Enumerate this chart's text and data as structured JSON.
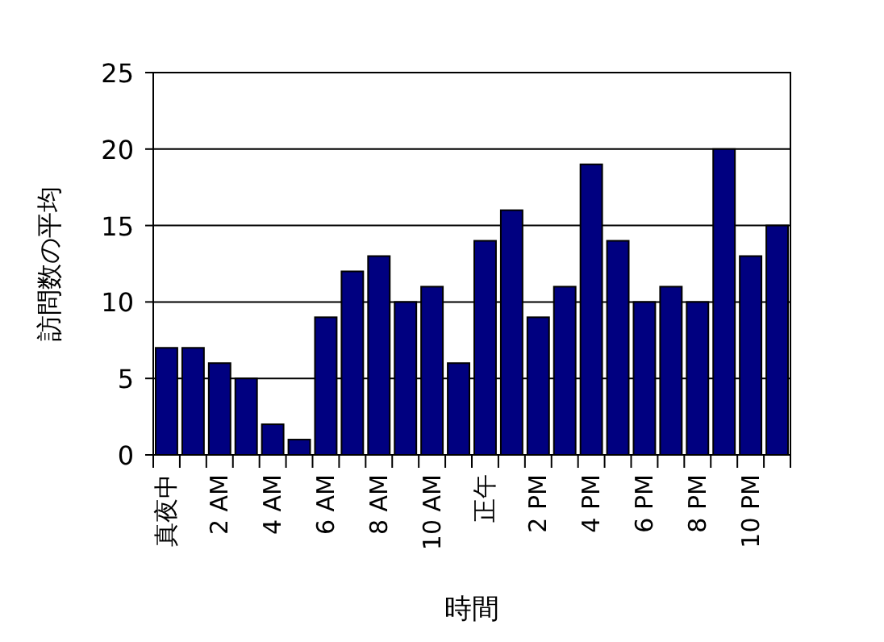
{
  "chart_data": {
    "type": "bar",
    "xlabel": "時間",
    "ylabel": "訪問数の平均",
    "categories": [
      "真夜中",
      null,
      "2 AM",
      null,
      "4 AM",
      null,
      "6 AM",
      null,
      "8 AM",
      null,
      "10 AM",
      null,
      "正午",
      null,
      "2 PM",
      null,
      "4 PM",
      null,
      "6 PM",
      null,
      "8 PM",
      null,
      "10 PM",
      null
    ],
    "series": [
      {
        "color": "#000080",
        "values": [
          7,
          7,
          6,
          5,
          2,
          1,
          9,
          12,
          13,
          10,
          11,
          6,
          14,
          16,
          9,
          11,
          19,
          14,
          10,
          11,
          10,
          20,
          13,
          15
        ]
      }
    ],
    "ylim": [
      0,
      25
    ],
    "yticks": [
      0,
      5,
      10,
      15,
      20,
      25
    ],
    "grid": "y"
  }
}
